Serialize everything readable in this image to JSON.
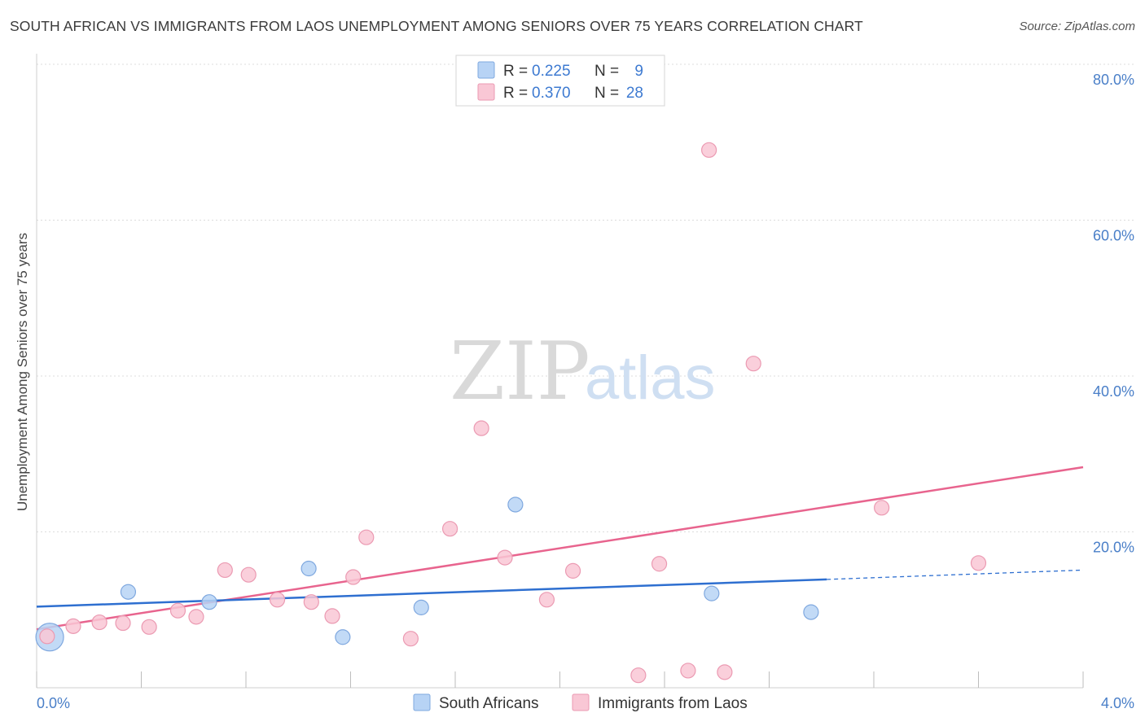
{
  "title": "SOUTH AFRICAN VS IMMIGRANTS FROM LAOS UNEMPLOYMENT AMONG SENIORS OVER 75 YEARS CORRELATION CHART",
  "source": "Source: ZipAtlas.com",
  "watermark": {
    "zip": "ZIP",
    "atlas": "atlas"
  },
  "colors": {
    "blue_fill": "#b7d3f5",
    "blue_stroke": "#7fa8df",
    "blue_line": "#2e6fd0",
    "pink_fill": "#f9c7d5",
    "pink_stroke": "#eb9ab2",
    "pink_line": "#e8648e",
    "axis_label": "#4a7fc8",
    "grid": "#dcdcdc"
  },
  "legend": {
    "rows": [
      {
        "r_label": "R =",
        "r_value": "0.225",
        "n_label": "N =",
        "n_value": "9",
        "color": "#b7d3f5",
        "stroke": "#7fa8df"
      },
      {
        "r_label": "R =",
        "r_value": "0.370",
        "n_label": "N =",
        "n_value": "28",
        "color": "#f9c7d5",
        "stroke": "#eb9ab2"
      }
    ]
  },
  "bottom_legend": [
    {
      "label": "South Africans",
      "color": "#b7d3f5",
      "stroke": "#7fa8df"
    },
    {
      "label": "Immigrants from Laos",
      "color": "#f9c7d5",
      "stroke": "#eb9ab2"
    }
  ],
  "chart_data": {
    "type": "scatter",
    "title": "SOUTH AFRICAN VS IMMIGRANTS FROM LAOS UNEMPLOYMENT AMONG SENIORS OVER 75 YEARS CORRELATION CHART",
    "xlabel": "",
    "ylabel": "Unemployment Among Seniors over 75 years",
    "xlim": [
      0,
      4.0
    ],
    "ylim": [
      0,
      80
    ],
    "x_tick_labels": [
      {
        "value": 0,
        "label": "0.0%"
      },
      {
        "value": 4.0,
        "label": "4.0%"
      }
    ],
    "y_tick_labels": [
      {
        "value": 80,
        "label": "80.0%"
      },
      {
        "value": 60,
        "label": "60.0%"
      },
      {
        "value": 40,
        "label": "40.0%"
      },
      {
        "value": 20,
        "label": "20.0%"
      }
    ],
    "series": [
      {
        "name": "South Africans",
        "R": 0.225,
        "N": 9,
        "points": [
          {
            "x": 0.05,
            "y": 6.5,
            "size": "large"
          },
          {
            "x": 0.35,
            "y": 12.3
          },
          {
            "x": 0.66,
            "y": 11.0
          },
          {
            "x": 1.04,
            "y": 15.3
          },
          {
            "x": 1.17,
            "y": 6.5
          },
          {
            "x": 1.47,
            "y": 10.3
          },
          {
            "x": 1.83,
            "y": 23.5
          },
          {
            "x": 2.58,
            "y": 12.1
          },
          {
            "x": 2.96,
            "y": 9.7
          }
        ],
        "trend": {
          "x0": 0.0,
          "y0": 10.4,
          "x1": 3.02,
          "y1": 13.9,
          "dash_x1": 4.0,
          "dash_y1": 15.1
        }
      },
      {
        "name": "Immigrants from Laos",
        "R": 0.37,
        "N": 28,
        "points": [
          {
            "x": 0.04,
            "y": 6.6
          },
          {
            "x": 0.14,
            "y": 7.9
          },
          {
            "x": 0.24,
            "y": 8.4
          },
          {
            "x": 0.33,
            "y": 8.3
          },
          {
            "x": 0.43,
            "y": 7.8
          },
          {
            "x": 0.54,
            "y": 9.9
          },
          {
            "x": 0.61,
            "y": 9.1
          },
          {
            "x": 0.72,
            "y": 15.1
          },
          {
            "x": 0.81,
            "y": 14.5
          },
          {
            "x": 0.92,
            "y": 11.3
          },
          {
            "x": 1.05,
            "y": 11.0
          },
          {
            "x": 1.13,
            "y": 9.2
          },
          {
            "x": 1.21,
            "y": 14.2
          },
          {
            "x": 1.26,
            "y": 19.3
          },
          {
            "x": 1.43,
            "y": 6.3
          },
          {
            "x": 1.58,
            "y": 20.4
          },
          {
            "x": 1.7,
            "y": 33.3
          },
          {
            "x": 1.79,
            "y": 16.7
          },
          {
            "x": 1.95,
            "y": 11.3
          },
          {
            "x": 2.05,
            "y": 15.0
          },
          {
            "x": 2.3,
            "y": 1.6
          },
          {
            "x": 2.38,
            "y": 15.9
          },
          {
            "x": 2.49,
            "y": 2.2
          },
          {
            "x": 2.57,
            "y": 69.0
          },
          {
            "x": 2.63,
            "y": 2.0
          },
          {
            "x": 2.74,
            "y": 41.6
          },
          {
            "x": 3.23,
            "y": 23.1
          },
          {
            "x": 3.6,
            "y": 16.0
          }
        ],
        "trend": {
          "x0": 0.0,
          "y0": 7.5,
          "x1": 4.0,
          "y1": 28.3
        }
      }
    ]
  }
}
